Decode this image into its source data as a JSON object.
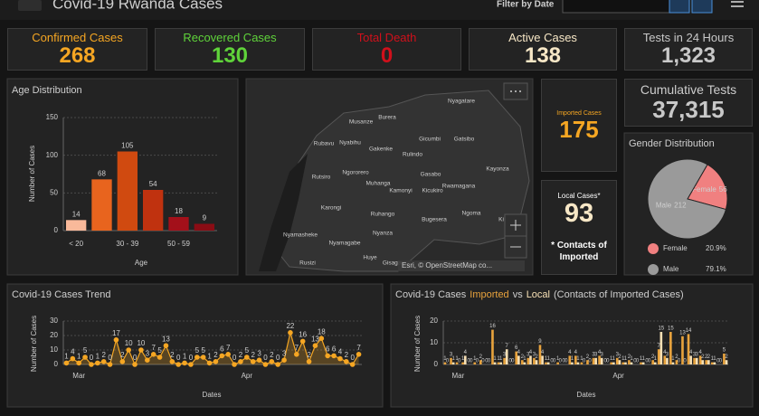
{
  "header": {
    "title": "Covid-19 Rwanda Cases",
    "filter_label": "Filter by Date"
  },
  "kpis": [
    {
      "label": "Confirmed Cases",
      "value": 268,
      "color": "#f5a623"
    },
    {
      "label": "Recovered Cases",
      "value": 130,
      "color": "#5fd33a"
    },
    {
      "label": "Total Death",
      "value": 0,
      "color": "#d0101b"
    },
    {
      "label": "Active Cases",
      "value": 138,
      "color": "#f7e7c6"
    },
    {
      "label": "Tests in 24 Hours",
      "value": "1,323",
      "color": "#c8c8c8"
    },
    {
      "label": "Imported Cases",
      "value": 175,
      "color": "#f5a623"
    },
    {
      "label": "Local Cases*",
      "value": 93,
      "color": "#f7e7c6",
      "note": "* Contacts of Imported"
    },
    {
      "label": "Cumulative Tests",
      "value": "37,315",
      "color": "#c8c8c8"
    }
  ],
  "map": {
    "labels": [
      "Nyagatare",
      "Musanze",
      "Burera",
      "Gicumbi",
      "Gatsibo",
      "Rubavu",
      "Nyabihu",
      "Gakenke",
      "Rulindo",
      "Kayonza",
      "Rutsiro",
      "Ngororero",
      "Gasabo",
      "Muhanga",
      "Kamonyi",
      "Kicukiro",
      "Rwamagana",
      "Karongi",
      "Ruhango",
      "Bugesera",
      "Ngoma",
      "Ki",
      "Nyamasheke",
      "Nyamagabe",
      "Nyanza",
      "Rusizi",
      "Huye",
      "Gisagara"
    ],
    "attribution": "Esri, © OpenStreetMap co..."
  },
  "chart_data": [
    {
      "type": "bar",
      "title": "Age Distribution",
      "x_label": "Age",
      "y_label": "Number of Cases",
      "categories": [
        "< 20",
        null,
        "30 - 39",
        null,
        "50 - 59",
        null
      ],
      "values": [
        14,
        68,
        105,
        54,
        18,
        9
      ],
      "colors": [
        "#f9b99a",
        "#e8641e",
        "#d04a10",
        "#c0320f",
        "#a3101a",
        "#8a0c14"
      ],
      "ylim": [
        0,
        150
      ],
      "yticks": [
        0,
        50,
        100,
        150
      ],
      "grid": true
    },
    {
      "type": "pie",
      "title": "Gender Distribution",
      "categories": [
        "Female",
        "Male"
      ],
      "values": [
        56,
        212
      ],
      "colors": [
        "#f08080",
        "#9a9a9a"
      ],
      "percent_labels": [
        "20.9%",
        "79.1%"
      ]
    },
    {
      "type": "line",
      "title": "Covid-19 Cases Trend",
      "x_label": "Dates",
      "y_label": "Number of Cases",
      "categories": [
        null,
        null,
        "Mar",
        null,
        null,
        null,
        null,
        null,
        null,
        null,
        null,
        null,
        null,
        null,
        null,
        null,
        null,
        null,
        null,
        null,
        null,
        null,
        null,
        null,
        null,
        null,
        null,
        null,
        null,
        "Apr",
        null,
        null,
        null,
        null,
        null,
        null,
        null,
        null,
        null,
        null,
        null,
        null,
        null,
        null,
        null,
        null,
        null,
        null
      ],
      "values": [
        1,
        4,
        1,
        5,
        0,
        1,
        2,
        0,
        17,
        2,
        10,
        0,
        10,
        3,
        7,
        5,
        13,
        2,
        0,
        1,
        0,
        5,
        5,
        1,
        2,
        6,
        7,
        0,
        2,
        5,
        2,
        3,
        0,
        2,
        0,
        3,
        22,
        7,
        16,
        2,
        13,
        18,
        6,
        6,
        4,
        2,
        0,
        7
      ],
      "color": "#f5a623",
      "ylim": [
        0,
        30
      ],
      "yticks": [
        0,
        10,
        20,
        30
      ],
      "grid": true
    },
    {
      "type": "bar",
      "title_prefix": "Covid-19 Cases",
      "title_joiner": "vs",
      "title_suffix": "(Contacts of Imported Cases)",
      "x_label": "Dates",
      "y_label": "Number of Cases",
      "categories": [
        null,
        null,
        "Mar",
        null,
        null,
        null,
        null,
        null,
        null,
        null,
        null,
        null,
        null,
        null,
        null,
        null,
        null,
        null,
        null,
        null,
        null,
        null,
        null,
        null,
        null,
        null,
        null,
        null,
        null,
        "Apr",
        null,
        null,
        null,
        null,
        null,
        null,
        null,
        null,
        null,
        null,
        null,
        null,
        null,
        null,
        null,
        null,
        null,
        null
      ],
      "series": [
        {
          "name": "Imported",
          "color": "#e8a33d",
          "values": [
            1,
            3,
            1,
            1,
            0,
            1,
            2,
            0,
            16,
            1,
            3,
            0,
            6,
            2,
            3,
            3,
            9,
            1,
            0,
            1,
            0,
            4,
            4,
            1,
            2,
            3,
            4,
            0,
            1,
            3,
            1,
            2,
            0,
            1,
            0,
            2,
            7,
            4,
            15,
            2,
            13,
            14,
            3,
            4,
            2,
            1,
            0,
            5
          ]
        },
        {
          "name": "Local",
          "color": "#f7e0b5",
          "values": [
            0,
            1,
            0,
            4,
            0,
            0,
            0,
            0,
            1,
            1,
            7,
            0,
            4,
            1,
            4,
            2,
            4,
            1,
            0,
            0,
            0,
            1,
            1,
            0,
            0,
            3,
            3,
            0,
            1,
            2,
            1,
            1,
            0,
            1,
            0,
            1,
            15,
            3,
            1,
            0,
            0,
            4,
            3,
            2,
            2,
            1,
            0,
            2
          ]
        }
      ],
      "ylim": [
        0,
        20
      ],
      "yticks": [
        0,
        10,
        20
      ],
      "grid": true
    }
  ]
}
